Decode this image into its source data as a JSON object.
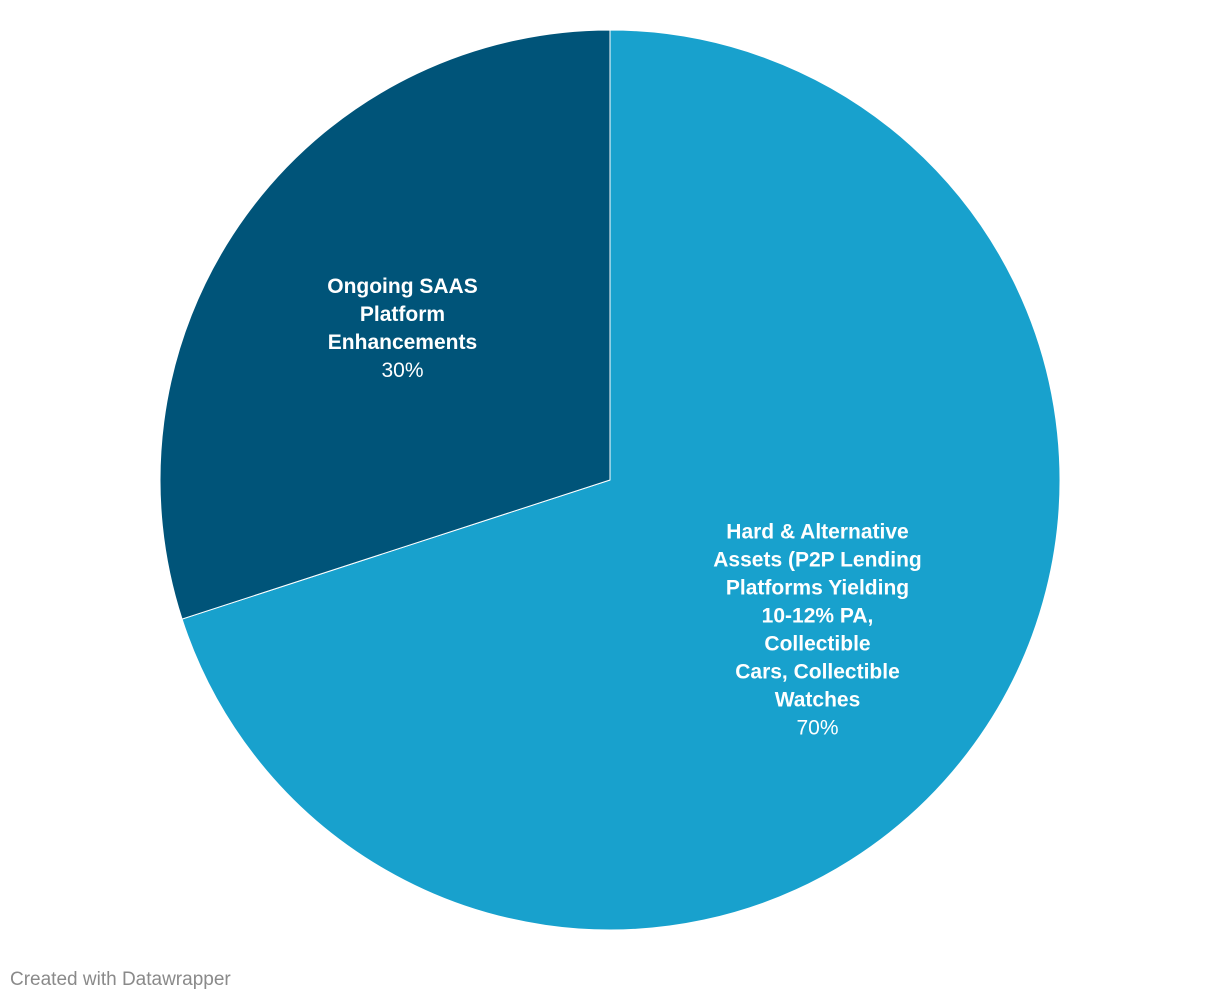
{
  "chart_data": {
    "type": "pie",
    "title": "",
    "slices": [
      {
        "label_lines": [
          "Hard & Alternative",
          "Assets (P2P Lending",
          "Platforms Yielding",
          "10-12% PA,",
          "Collectible",
          "Cars, Collectible",
          "Watches"
        ],
        "value": 70,
        "value_label": "70%",
        "color": "#18a1cd"
      },
      {
        "label_lines": [
          "Ongoing SAAS",
          "Platform",
          "Enhancements"
        ],
        "value": 30,
        "value_label": "30%",
        "color": "#005479"
      }
    ]
  },
  "footer": {
    "credit": "Created with Datawrapper"
  }
}
